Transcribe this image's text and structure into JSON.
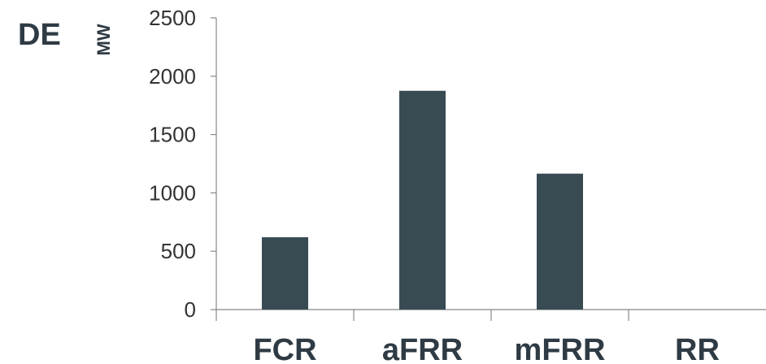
{
  "chart_data": {
    "type": "bar",
    "title": "DE",
    "ylabel": "MW",
    "xlabel": "",
    "categories": [
      "FCR",
      "aFRR",
      "mFRR",
      "RR"
    ],
    "values": [
      620,
      1875,
      1165,
      0
    ],
    "ylim": [
      0,
      2500
    ],
    "yticks": [
      0,
      500,
      1000,
      1500,
      2000,
      2500
    ],
    "grid": false,
    "bar_color": "#384b53",
    "axis_color": "#888888"
  }
}
